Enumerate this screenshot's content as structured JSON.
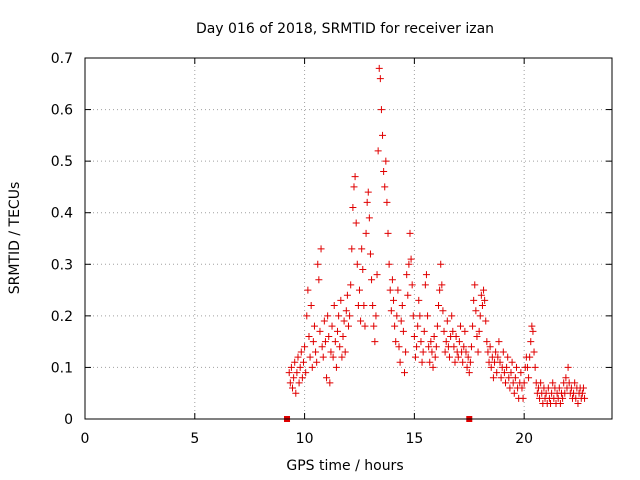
{
  "chart_data": {
    "type": "scatter",
    "title": "Day 016 of 2018, SRMTID for receiver izan",
    "xlabel": "GPS time / hours",
    "ylabel": "SRMTID / TECUs",
    "xlim": [
      0,
      24
    ],
    "ylim": [
      0,
      0.7
    ],
    "xticks": [
      0,
      5,
      10,
      15,
      20
    ],
    "xtick_labels": [
      "0",
      "5",
      "10",
      "15",
      "20"
    ],
    "yticks": [
      0,
      0.1,
      0.2,
      0.3,
      0.4,
      0.5,
      0.6,
      0.7
    ],
    "ytick_labels": [
      "0",
      "0.1",
      "0.2",
      "0.3",
      "0.4",
      "0.5",
      "0.6",
      "0.7"
    ],
    "grid": true,
    "marker": "plus",
    "color": "#e00000",
    "markers_on_axis": [
      {
        "x": 9.2,
        "y": 0
      },
      {
        "x": 17.5,
        "y": 0
      }
    ],
    "series": [
      {
        "name": "SRMTID",
        "points": [
          [
            9.3,
            0.09
          ],
          [
            9.35,
            0.07
          ],
          [
            9.4,
            0.1
          ],
          [
            9.45,
            0.06
          ],
          [
            9.5,
            0.08
          ],
          [
            9.55,
            0.11
          ],
          [
            9.6,
            0.05
          ],
          [
            9.65,
            0.09
          ],
          [
            9.7,
            0.12
          ],
          [
            9.75,
            0.07
          ],
          [
            9.8,
            0.1
          ],
          [
            9.85,
            0.13
          ],
          [
            9.9,
            0.08
          ],
          [
            9.95,
            0.11
          ],
          [
            10.0,
            0.14
          ],
          [
            10.05,
            0.09
          ],
          [
            10.1,
            0.2
          ],
          [
            10.15,
            0.25
          ],
          [
            10.2,
            0.16
          ],
          [
            10.25,
            0.12
          ],
          [
            10.3,
            0.22
          ],
          [
            10.35,
            0.1
          ],
          [
            10.4,
            0.15
          ],
          [
            10.45,
            0.18
          ],
          [
            10.5,
            0.13
          ],
          [
            10.55,
            0.11
          ],
          [
            10.6,
            0.3
          ],
          [
            10.65,
            0.27
          ],
          [
            10.7,
            0.17
          ],
          [
            10.75,
            0.33
          ],
          [
            10.8,
            0.14
          ],
          [
            10.85,
            0.12
          ],
          [
            10.9,
            0.19
          ],
          [
            10.95,
            0.15
          ],
          [
            11.0,
            0.08
          ],
          [
            11.05,
            0.2
          ],
          [
            11.1,
            0.16
          ],
          [
            11.15,
            0.07
          ],
          [
            11.2,
            0.13
          ],
          [
            11.25,
            0.18
          ],
          [
            11.3,
            0.12
          ],
          [
            11.35,
            0.22
          ],
          [
            11.4,
            0.15
          ],
          [
            11.45,
            0.1
          ],
          [
            11.5,
            0.17
          ],
          [
            11.55,
            0.2
          ],
          [
            11.6,
            0.14
          ],
          [
            11.65,
            0.23
          ],
          [
            11.7,
            0.12
          ],
          [
            11.75,
            0.16
          ],
          [
            11.8,
            0.19
          ],
          [
            11.85,
            0.13
          ],
          [
            11.9,
            0.21
          ],
          [
            11.95,
            0.24
          ],
          [
            12.0,
            0.18
          ],
          [
            12.05,
            0.2
          ],
          [
            12.1,
            0.26
          ],
          [
            12.15,
            0.33
          ],
          [
            12.2,
            0.41
          ],
          [
            12.25,
            0.45
          ],
          [
            12.3,
            0.47
          ],
          [
            12.35,
            0.38
          ],
          [
            12.4,
            0.3
          ],
          [
            12.45,
            0.22
          ],
          [
            12.5,
            0.25
          ],
          [
            12.55,
            0.19
          ],
          [
            12.6,
            0.33
          ],
          [
            12.65,
            0.29
          ],
          [
            12.7,
            0.22
          ],
          [
            12.75,
            0.18
          ],
          [
            12.8,
            0.36
          ],
          [
            12.85,
            0.42
          ],
          [
            12.9,
            0.44
          ],
          [
            12.95,
            0.39
          ],
          [
            13.0,
            0.32
          ],
          [
            13.05,
            0.27
          ],
          [
            13.1,
            0.22
          ],
          [
            13.15,
            0.18
          ],
          [
            13.2,
            0.15
          ],
          [
            13.25,
            0.2
          ],
          [
            13.3,
            0.28
          ],
          [
            13.35,
            0.52
          ],
          [
            13.4,
            0.68
          ],
          [
            13.45,
            0.66
          ],
          [
            13.5,
            0.6
          ],
          [
            13.55,
            0.55
          ],
          [
            13.6,
            0.48
          ],
          [
            13.65,
            0.45
          ],
          [
            13.7,
            0.5
          ],
          [
            13.75,
            0.42
          ],
          [
            13.8,
            0.36
          ],
          [
            13.85,
            0.3
          ],
          [
            13.9,
            0.25
          ],
          [
            13.95,
            0.21
          ],
          [
            14.0,
            0.27
          ],
          [
            14.05,
            0.23
          ],
          [
            14.1,
            0.18
          ],
          [
            14.15,
            0.15
          ],
          [
            14.2,
            0.2
          ],
          [
            14.25,
            0.25
          ],
          [
            14.3,
            0.14
          ],
          [
            14.35,
            0.11
          ],
          [
            14.4,
            0.19
          ],
          [
            14.45,
            0.22
          ],
          [
            14.5,
            0.17
          ],
          [
            14.55,
            0.09
          ],
          [
            14.6,
            0.13
          ],
          [
            14.65,
            0.28
          ],
          [
            14.7,
            0.24
          ],
          [
            14.75,
            0.3
          ],
          [
            14.8,
            0.36
          ],
          [
            14.85,
            0.31
          ],
          [
            14.9,
            0.26
          ],
          [
            14.95,
            0.2
          ],
          [
            15.0,
            0.16
          ],
          [
            15.05,
            0.12
          ],
          [
            15.1,
            0.14
          ],
          [
            15.15,
            0.18
          ],
          [
            15.2,
            0.23
          ],
          [
            15.25,
            0.2
          ],
          [
            15.3,
            0.15
          ],
          [
            15.35,
            0.11
          ],
          [
            15.4,
            0.13
          ],
          [
            15.45,
            0.17
          ],
          [
            15.5,
            0.26
          ],
          [
            15.55,
            0.28
          ],
          [
            15.6,
            0.2
          ],
          [
            15.65,
            0.14
          ],
          [
            15.7,
            0.11
          ],
          [
            15.75,
            0.15
          ],
          [
            15.8,
            0.13
          ],
          [
            15.85,
            0.1
          ],
          [
            15.9,
            0.16
          ],
          [
            15.95,
            0.12
          ],
          [
            16.0,
            0.14
          ],
          [
            16.05,
            0.18
          ],
          [
            16.1,
            0.22
          ],
          [
            16.15,
            0.25
          ],
          [
            16.2,
            0.3
          ],
          [
            16.25,
            0.26
          ],
          [
            16.3,
            0.21
          ],
          [
            16.35,
            0.17
          ],
          [
            16.4,
            0.13
          ],
          [
            16.45,
            0.15
          ],
          [
            16.5,
            0.19
          ],
          [
            16.55,
            0.14
          ],
          [
            16.6,
            0.12
          ],
          [
            16.65,
            0.16
          ],
          [
            16.7,
            0.2
          ],
          [
            16.75,
            0.17
          ],
          [
            16.8,
            0.14
          ],
          [
            16.85,
            0.11
          ],
          [
            16.9,
            0.16
          ],
          [
            16.95,
            0.13
          ],
          [
            17.0,
            0.12
          ],
          [
            17.05,
            0.15
          ],
          [
            17.1,
            0.18
          ],
          [
            17.15,
            0.13
          ],
          [
            17.2,
            0.11
          ],
          [
            17.25,
            0.14
          ],
          [
            17.3,
            0.17
          ],
          [
            17.35,
            0.13
          ],
          [
            17.4,
            0.1
          ],
          [
            17.45,
            0.12
          ],
          [
            17.5,
            0.09
          ],
          [
            17.55,
            0.11
          ],
          [
            17.6,
            0.14
          ],
          [
            17.65,
            0.18
          ],
          [
            17.7,
            0.23
          ],
          [
            17.75,
            0.26
          ],
          [
            17.8,
            0.21
          ],
          [
            17.85,
            0.16
          ],
          [
            17.9,
            0.13
          ],
          [
            17.95,
            0.17
          ],
          [
            18.0,
            0.2
          ],
          [
            18.05,
            0.24
          ],
          [
            18.1,
            0.22
          ],
          [
            18.15,
            0.25
          ],
          [
            18.2,
            0.23
          ],
          [
            18.25,
            0.19
          ],
          [
            18.3,
            0.15
          ],
          [
            18.35,
            0.13
          ],
          [
            18.4,
            0.11
          ],
          [
            18.45,
            0.14
          ],
          [
            18.5,
            0.1
          ],
          [
            18.55,
            0.12
          ],
          [
            18.6,
            0.08
          ],
          [
            18.65,
            0.11
          ],
          [
            18.7,
            0.13
          ],
          [
            18.75,
            0.09
          ],
          [
            18.8,
            0.12
          ],
          [
            18.85,
            0.15
          ],
          [
            18.9,
            0.11
          ],
          [
            18.95,
            0.08
          ],
          [
            19.0,
            0.1
          ],
          [
            19.05,
            0.13
          ],
          [
            19.1,
            0.09
          ],
          [
            19.15,
            0.07
          ],
          [
            19.2,
            0.1
          ],
          [
            19.25,
            0.12
          ],
          [
            19.3,
            0.08
          ],
          [
            19.35,
            0.06
          ],
          [
            19.4,
            0.09
          ],
          [
            19.45,
            0.11
          ],
          [
            19.5,
            0.07
          ],
          [
            19.55,
            0.05
          ],
          [
            19.6,
            0.08
          ],
          [
            19.65,
            0.1
          ],
          [
            19.7,
            0.06
          ],
          [
            19.75,
            0.04
          ],
          [
            19.8,
            0.07
          ],
          [
            19.85,
            0.09
          ],
          [
            19.9,
            0.06
          ],
          [
            19.95,
            0.04
          ],
          [
            20.0,
            0.07
          ],
          [
            20.05,
            0.1
          ],
          [
            20.1,
            0.12
          ],
          [
            20.15,
            0.1
          ],
          [
            20.2,
            0.08
          ],
          [
            20.25,
            0.12
          ],
          [
            20.3,
            0.15
          ],
          [
            20.35,
            0.18
          ],
          [
            20.4,
            0.17
          ],
          [
            20.45,
            0.13
          ],
          [
            20.5,
            0.1
          ],
          [
            20.55,
            0.07
          ],
          [
            20.6,
            0.05
          ],
          [
            20.65,
            0.06
          ],
          [
            20.7,
            0.04
          ],
          [
            20.75,
            0.07
          ],
          [
            20.8,
            0.05
          ],
          [
            20.85,
            0.03
          ],
          [
            20.9,
            0.06
          ],
          [
            20.95,
            0.04
          ],
          [
            21.0,
            0.05
          ],
          [
            21.05,
            0.03
          ],
          [
            21.1,
            0.06
          ],
          [
            21.15,
            0.04
          ],
          [
            21.2,
            0.03
          ],
          [
            21.25,
            0.05
          ],
          [
            21.3,
            0.07
          ],
          [
            21.35,
            0.04
          ],
          [
            21.4,
            0.06
          ],
          [
            21.45,
            0.03
          ],
          [
            21.5,
            0.05
          ],
          [
            21.55,
            0.04
          ],
          [
            21.6,
            0.06
          ],
          [
            21.65,
            0.03
          ],
          [
            21.7,
            0.05
          ],
          [
            21.75,
            0.04
          ],
          [
            21.8,
            0.07
          ],
          [
            21.85,
            0.05
          ],
          [
            21.9,
            0.08
          ],
          [
            21.95,
            0.06
          ],
          [
            22.0,
            0.1
          ],
          [
            22.05,
            0.07
          ],
          [
            22.1,
            0.05
          ],
          [
            22.15,
            0.06
          ],
          [
            22.2,
            0.04
          ],
          [
            22.25,
            0.05
          ],
          [
            22.3,
            0.07
          ],
          [
            22.35,
            0.04
          ],
          [
            22.4,
            0.06
          ],
          [
            22.45,
            0.03
          ],
          [
            22.5,
            0.05
          ],
          [
            22.55,
            0.06
          ],
          [
            22.6,
            0.04
          ],
          [
            22.65,
            0.05
          ],
          [
            22.7,
            0.06
          ],
          [
            22.75,
            0.04
          ]
        ]
      }
    ]
  }
}
